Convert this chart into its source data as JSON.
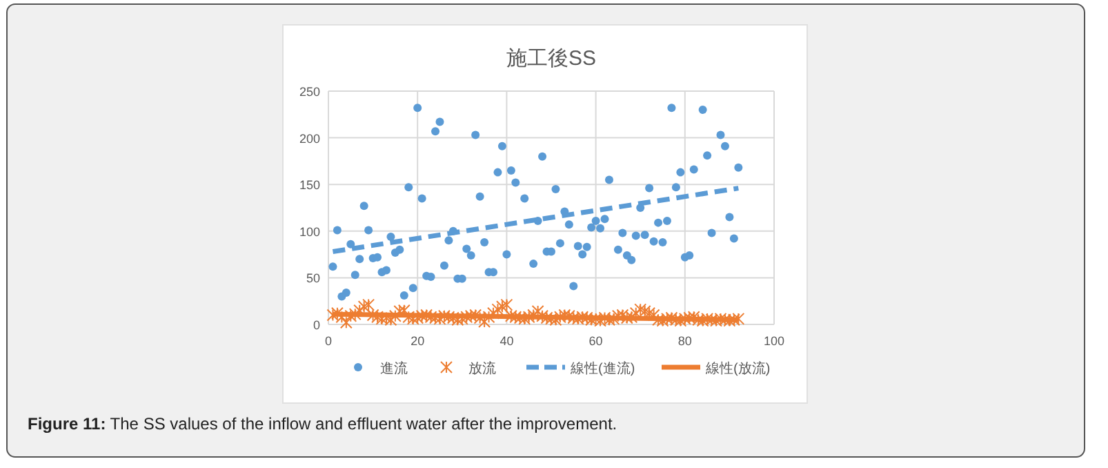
{
  "chart_data": {
    "type": "scatter",
    "title": "施工後SS",
    "xlim": [
      0,
      100
    ],
    "xticks": [
      0,
      20,
      40,
      60,
      80,
      100
    ],
    "ylim": [
      0,
      250
    ],
    "yticks": [
      0,
      50,
      100,
      150,
      200,
      250
    ],
    "grid": true,
    "legend": "bottom",
    "annotations": [
      "Figure 11: The SS values of the inflow and effluent water after the improvement."
    ],
    "series": [
      {
        "name": "進流",
        "marker": "circle",
        "color": "#5b9bd5",
        "x": [
          1,
          2,
          3,
          4,
          5,
          6,
          7,
          8,
          9,
          10,
          11,
          12,
          13,
          14,
          15,
          16,
          17,
          18,
          19,
          20,
          21,
          22,
          23,
          24,
          25,
          26,
          27,
          28,
          29,
          30,
          31,
          32,
          33,
          34,
          35,
          36,
          37,
          38,
          39,
          40,
          41,
          42,
          44,
          46,
          47,
          48,
          49,
          50,
          51,
          52,
          53,
          54,
          55,
          56,
          57,
          58,
          59,
          60,
          61,
          62,
          63,
          65,
          66,
          67,
          68,
          69,
          70,
          71,
          72,
          73,
          74,
          75,
          76,
          77,
          78,
          79,
          80,
          81,
          82,
          84,
          85,
          86,
          88,
          89,
          90,
          91,
          92
        ],
        "values": [
          62,
          101,
          30,
          34,
          86,
          53,
          70,
          127,
          101,
          71,
          72,
          56,
          58,
          94,
          77,
          80,
          31,
          147,
          39,
          232,
          135,
          52,
          51,
          207,
          217,
          63,
          90,
          100,
          49,
          49,
          81,
          74,
          203,
          137,
          88,
          56,
          56,
          163,
          191,
          75,
          165,
          152,
          135,
          65,
          111,
          180,
          78,
          78,
          145,
          87,
          121,
          107,
          41,
          84,
          75,
          83,
          104,
          111,
          103,
          113,
          155,
          80,
          98,
          74,
          69,
          95,
          125,
          96,
          146,
          89,
          109,
          88,
          111,
          232,
          147,
          163,
          72,
          74,
          166,
          230,
          181,
          98,
          203,
          191,
          115,
          92,
          168
        ]
      },
      {
        "name": "放流",
        "marker": "cross",
        "color": "#ed7d31",
        "x": [
          1,
          2,
          3,
          4,
          5,
          6,
          7,
          8,
          9,
          10,
          11,
          12,
          13,
          14,
          15,
          16,
          17,
          18,
          19,
          20,
          21,
          22,
          23,
          24,
          25,
          26,
          27,
          28,
          29,
          30,
          31,
          32,
          33,
          34,
          35,
          36,
          37,
          38,
          39,
          40,
          41,
          42,
          43,
          44,
          45,
          46,
          47,
          48,
          49,
          50,
          51,
          52,
          53,
          54,
          55,
          56,
          57,
          58,
          59,
          60,
          61,
          62,
          63,
          64,
          65,
          66,
          67,
          68,
          69,
          70,
          71,
          72,
          73,
          74,
          75,
          76,
          77,
          78,
          79,
          80,
          81,
          82,
          83,
          84,
          85,
          86,
          87,
          88,
          89,
          90,
          91,
          92
        ],
        "values": [
          10,
          12,
          8,
          2,
          9,
          11,
          15,
          19,
          21,
          10,
          8,
          6,
          7,
          5,
          9,
          14,
          15,
          8,
          6,
          7,
          9,
          10,
          8,
          7,
          6,
          9,
          8,
          7,
          5,
          6,
          8,
          9,
          10,
          7,
          3,
          8,
          12,
          16,
          19,
          21,
          9,
          8,
          7,
          6,
          8,
          10,
          14,
          9,
          7,
          6,
          5,
          8,
          10,
          9,
          7,
          6,
          8,
          7,
          5,
          6,
          4,
          7,
          5,
          6,
          9,
          10,
          7,
          8,
          12,
          16,
          14,
          12,
          10,
          5,
          4,
          6,
          7,
          5,
          4,
          6,
          7,
          8,
          5,
          4,
          6,
          5,
          4,
          6,
          5,
          4,
          5,
          6
        ]
      },
      {
        "name": "線性(進流)",
        "type": "line",
        "line_style": "dashed",
        "color": "#5b9bd5",
        "x": [
          1,
          92
        ],
        "values": [
          78,
          146
        ]
      },
      {
        "name": "線性(放流)",
        "type": "line",
        "line_style": "solid",
        "color": "#ed7d31",
        "x": [
          1,
          92
        ],
        "values": [
          11,
          5
        ]
      }
    ]
  }
}
